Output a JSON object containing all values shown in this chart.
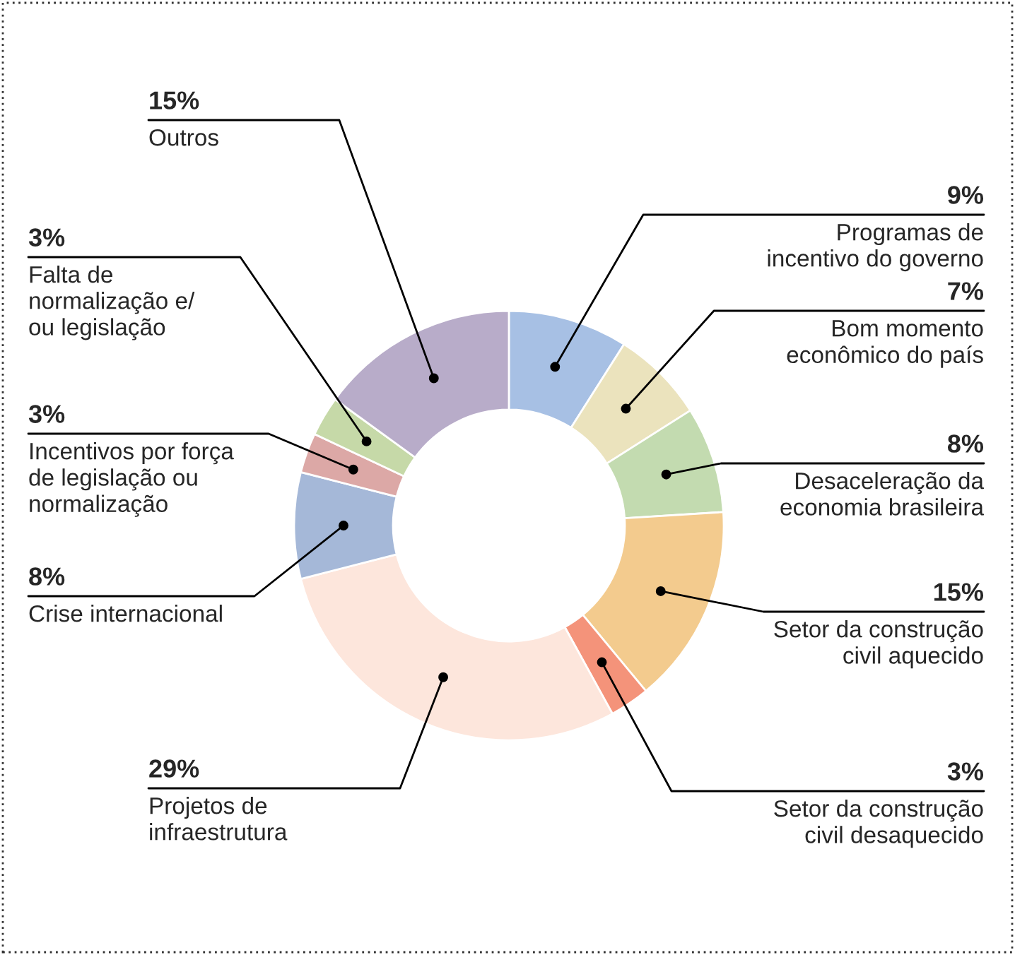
{
  "chart_data": {
    "type": "donut",
    "categories": [
      "Programas de\nincentivo do governo",
      "Bom momento\neconômico do país",
      "Desaceleração da\neconomia brasileira",
      "Setor da construção\ncivil aquecido",
      "Setor da construção\ncivil desaquecido",
      "Projetos de\ninfraestrutura",
      "Crise internacional",
      "Incentivos por força\nde legislação ou\nnormalização",
      "Falta de\nnormalização e/\nou legislação",
      "Outros"
    ],
    "values": [
      9,
      7,
      8,
      15,
      3,
      29,
      8,
      3,
      3,
      15
    ],
    "colors": [
      "#a7c0e4",
      "#ebe3bd",
      "#c3dbb0",
      "#f3cb8e",
      "#f4937a",
      "#fde6dc",
      "#a5b8d8",
      "#dca8a6",
      "#c6d9a8",
      "#b8acc9"
    ],
    "value_labels": [
      "9%",
      "7%",
      "8%",
      "15%",
      "3%",
      "29%",
      "8%",
      "3%",
      "3%",
      "15%"
    ]
  }
}
